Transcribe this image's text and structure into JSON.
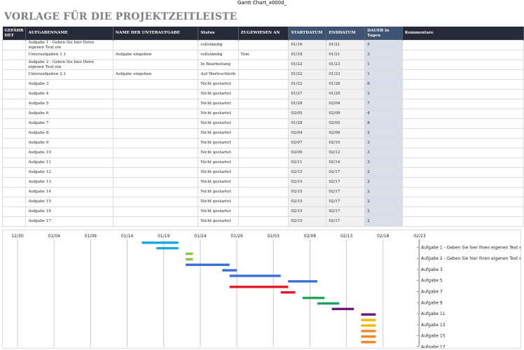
{
  "window_title": "Gantt Chart_x000d_",
  "page_title": "VORLAGE FÜR DIE PROJEKTZEITLEISTE",
  "columns": [
    {
      "key": "flag",
      "label": "GEFÄHR DET",
      "hl": false
    },
    {
      "key": "task",
      "label": "AUFGABENNAME",
      "hl": false
    },
    {
      "key": "sub",
      "label": "NAME DER UNTERAUFGABE",
      "hl": false
    },
    {
      "key": "status",
      "label": "Status",
      "hl": false
    },
    {
      "key": "assigned",
      "label": "ZUGEWIESEN AN",
      "hl": false
    },
    {
      "key": "start",
      "label": "STARTDATUM",
      "hl": true
    },
    {
      "key": "end",
      "label": "ENDDATUM",
      "hl": true
    },
    {
      "key": "dur",
      "label": "DAUER  in Tagen",
      "hl": true
    },
    {
      "key": "comment",
      "label": "Kommentare",
      "hl": false
    }
  ],
  "rows": [
    {
      "flag": "",
      "task": "Aufgabe 1 - Geben Sie hier Ihren eigenen Text ein",
      "sub": "",
      "status": "vollständig",
      "assigned": "",
      "start": "01/16",
      "end": "01/21",
      "dur": "5",
      "comment": ""
    },
    {
      "flag": "",
      "task": "Unteraufgaben 1.1",
      "sub": "Aufgabe eingeben",
      "status": "vollständig",
      "assigned": "Tom",
      "start": "01/18",
      "end": "01/21",
      "dur": "3",
      "comment": ""
    },
    {
      "flag": "",
      "task": "Aufgabe 2 - Geben Sie hier Ihren eigenen Text ein",
      "sub": "",
      "status": "In Bearbeitung",
      "assigned": "",
      "start": "01/22",
      "end": "01/23",
      "dur": "1",
      "comment": ""
    },
    {
      "flag": "",
      "task": "Unteraufgaben 2.1",
      "sub": "Aufgabe eingeben",
      "status": "Auf Warteschleife",
      "assigned": "",
      "start": "01/22",
      "end": "01/23",
      "dur": "1",
      "comment": ""
    },
    {
      "flag": "",
      "task": "Aufgabe 3",
      "sub": "",
      "status": "Nicht gestartet",
      "assigned": "",
      "start": "01/22",
      "end": "01/28",
      "dur": "6",
      "comment": ""
    },
    {
      "flag": "",
      "task": "Aufgabe 4",
      "sub": "",
      "status": "Nicht gestartet",
      "assigned": "",
      "start": "01/27",
      "end": "01/29",
      "dur": "2",
      "comment": ""
    },
    {
      "flag": "",
      "task": "Aufgabe 5",
      "sub": "",
      "status": "Nicht gestartet",
      "assigned": "",
      "start": "01/28",
      "end": "02/04",
      "dur": "7",
      "comment": ""
    },
    {
      "flag": "",
      "task": "Aufgabe 6",
      "sub": "",
      "status": "Nicht gestartet",
      "assigned": "",
      "start": "02/05",
      "end": "02/09",
      "dur": "4",
      "comment": ""
    },
    {
      "flag": "",
      "task": "Aufgabe 7",
      "sub": "",
      "status": "Nicht gestartet",
      "assigned": "",
      "start": "01/28",
      "end": "02/05",
      "dur": "8",
      "comment": ""
    },
    {
      "flag": "",
      "task": "Aufgabe 8",
      "sub": "",
      "status": "Nicht gestartet",
      "assigned": "",
      "start": "02/04",
      "end": "02/06",
      "dur": "2",
      "comment": ""
    },
    {
      "flag": "",
      "task": "Aufgabe 9",
      "sub": "",
      "status": "Nicht gestartet",
      "assigned": "",
      "start": "02/07",
      "end": "02/10",
      "dur": "3",
      "comment": ""
    },
    {
      "flag": "",
      "task": "Aufgabe 10",
      "sub": "",
      "status": "Nicht gestartet",
      "assigned": "",
      "start": "02/09",
      "end": "02/12",
      "dur": "3",
      "comment": ""
    },
    {
      "flag": "",
      "task": "Aufgabe 11",
      "sub": "",
      "status": "Nicht gestartet",
      "assigned": "",
      "start": "02/11",
      "end": "02/14",
      "dur": "3",
      "comment": ""
    },
    {
      "flag": "",
      "task": "Aufgabe 12",
      "sub": "",
      "status": "Nicht gestartet",
      "assigned": "",
      "start": "02/15",
      "end": "02/17",
      "dur": "2",
      "comment": ""
    },
    {
      "flag": "",
      "task": "Aufgabe 13",
      "sub": "",
      "status": "Nicht gestartet",
      "assigned": "",
      "start": "02/15",
      "end": "02/17",
      "dur": "2",
      "comment": ""
    },
    {
      "flag": "",
      "task": "Aufgabe 14",
      "sub": "",
      "status": "Nicht gestartet",
      "assigned": "",
      "start": "02/15",
      "end": "02/17",
      "dur": "2",
      "comment": ""
    },
    {
      "flag": "",
      "task": "Aufgabe 15",
      "sub": "",
      "status": "Nicht gestartet",
      "assigned": "",
      "start": "02/15",
      "end": "02/17",
      "dur": "2",
      "comment": ""
    },
    {
      "flag": "",
      "task": "Aufgabe 16",
      "sub": "",
      "status": "Nicht gestartet",
      "assigned": "",
      "start": "02/15",
      "end": "02/17",
      "dur": "2",
      "comment": ""
    },
    {
      "flag": "",
      "task": "Aufgabe 17",
      "sub": "",
      "status": "Nicht gestartet",
      "assigned": "",
      "start": "02/15",
      "end": "02/17",
      "dur": "2",
      "comment": ""
    }
  ],
  "chart_data": {
    "type": "bar",
    "orientation": "horizontal-gantt",
    "x_ticks": [
      "12/30",
      "01/04",
      "01/09",
      "01/14",
      "01/19",
      "01/24",
      "01/29",
      "02/03",
      "02/08",
      "02/13",
      "02/18",
      "02/23"
    ],
    "y_labels": [
      "Aufgabe 1 - Geben Sie hier Ihren eigenen Text ein",
      "Aufgabe 2 - Geben Sie hier Ihren eigenen Text ein",
      "Aufgabe 3",
      "Aufgabe 5",
      "Aufgabe 7",
      "Aufgabe 9",
      "Aufgabe 11",
      "Aufgabe 13",
      "Aufgabe 15",
      "Aufgabe 17"
    ],
    "xlim": [
      "12/30",
      "02/23"
    ],
    "grid": true,
    "tasks": [
      {
        "start": "01/16",
        "end": "01/21",
        "color": "#1aa6e0"
      },
      {
        "start": "01/18",
        "end": "01/21",
        "color": "#1aa6e0"
      },
      {
        "start": "01/22",
        "end": "01/23",
        "color": "#8cc63f"
      },
      {
        "start": "01/22",
        "end": "01/23",
        "color": "#8cc63f"
      },
      {
        "start": "01/22",
        "end": "01/28",
        "color": "#3a6fd8"
      },
      {
        "start": "01/27",
        "end": "01/29",
        "color": "#3a6fd8"
      },
      {
        "start": "01/28",
        "end": "02/04",
        "color": "#3a6fd8"
      },
      {
        "start": "02/05",
        "end": "02/09",
        "color": "#3a6fd8"
      },
      {
        "start": "01/28",
        "end": "02/05",
        "color": "#e01b22"
      },
      {
        "start": "02/04",
        "end": "02/06",
        "color": "#e01b22"
      },
      {
        "start": "02/07",
        "end": "02/10",
        "color": "#1aa55a"
      },
      {
        "start": "02/09",
        "end": "02/12",
        "color": "#1aa55a"
      },
      {
        "start": "02/11",
        "end": "02/14",
        "color": "#6b1a7a"
      },
      {
        "start": "02/15",
        "end": "02/17",
        "color": "#6b1a7a"
      },
      {
        "start": "02/15",
        "end": "02/17",
        "color": "#f5b800"
      },
      {
        "start": "02/15",
        "end": "02/17",
        "color": "#f5b800"
      },
      {
        "start": "02/15",
        "end": "02/17",
        "color": "#f0852a"
      },
      {
        "start": "02/15",
        "end": "02/17",
        "color": "#f0852a"
      },
      {
        "start": "02/15",
        "end": "02/17",
        "color": "#f0852a"
      }
    ]
  }
}
